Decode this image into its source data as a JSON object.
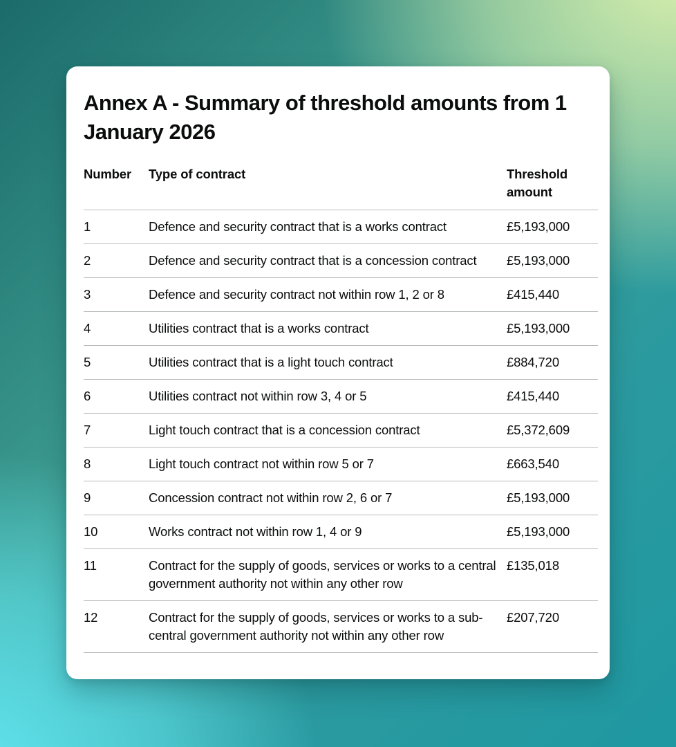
{
  "card": {
    "title": "Annex A - Summary of threshold amounts from 1 January 2026"
  },
  "table": {
    "headers": {
      "number": "Number",
      "type": "Type of contract",
      "amount": "Threshold amount"
    },
    "rows": [
      {
        "number": "1",
        "type": "Defence and security contract that is a works contract",
        "amount": "£5,193,000"
      },
      {
        "number": "2",
        "type": "Defence and security contract that is a concession contract",
        "amount": "£5,193,000"
      },
      {
        "number": "3",
        "type": "Defence and security contract not within row 1, 2 or 8",
        "amount": "£415,440"
      },
      {
        "number": "4",
        "type": "Utilities contract that is a works contract",
        "amount": "£5,193,000"
      },
      {
        "number": "5",
        "type": "Utilities contract that is a light touch contract",
        "amount": "£884,720"
      },
      {
        "number": "6",
        "type": "Utilities contract not within row 3, 4 or 5",
        "amount": "£415,440"
      },
      {
        "number": "7",
        "type": "Light touch contract that is a concession contract",
        "amount": "£5,372,609"
      },
      {
        "number": "8",
        "type": "Light touch contract not within row 5 or 7",
        "amount": "£663,540"
      },
      {
        "number": "9",
        "type": "Concession contract not within row 2, 6 or 7",
        "amount": "£5,193,000"
      },
      {
        "number": "10",
        "type": "Works contract not within row 1, 4 or 9",
        "amount": "£5,193,000"
      },
      {
        "number": "11",
        "type": "Contract for the supply of goods, services or works to a central government authority not within any other row",
        "amount": "£135,018"
      },
      {
        "number": "12",
        "type": "Contract for the supply of goods, services or works to a sub-central government authority not within any other row",
        "amount": "£207,720"
      }
    ]
  },
  "colors": {
    "card_background": "#ffffff",
    "text": "#0b0c0c",
    "divider": "#b7babb",
    "gradient_top_left": "#1b6b6a",
    "gradient_top_right": "#dbf0ac",
    "gradient_bottom_left": "#62e7f2",
    "gradient_bottom_right": "#1f98a1"
  }
}
